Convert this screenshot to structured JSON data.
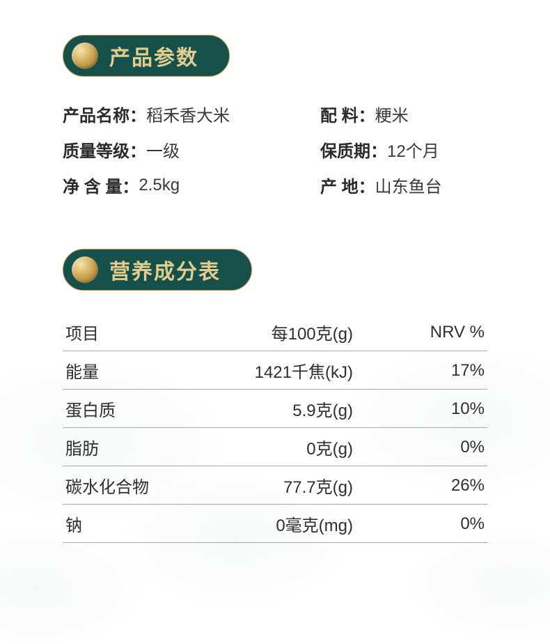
{
  "section1": {
    "title": "产品参数",
    "pill_bg": "#15504a",
    "pill_text_color": "#e4cc8f",
    "accent_gold_light": "#d9b867",
    "accent_gold_dark": "#b08a3a",
    "params_left": [
      {
        "label": "产品名称：",
        "value": "稻禾香大米"
      },
      {
        "label": "质量等级：",
        "value": "一级"
      },
      {
        "label": "净 含 量：",
        "value": "2.5kg"
      }
    ],
    "params_right": [
      {
        "label": "配        料：",
        "value": "粳米"
      },
      {
        "label": "保质期：",
        "value": "12个月"
      },
      {
        "label": "产        地：",
        "value": "山东鱼台"
      }
    ]
  },
  "section2": {
    "title": "营养成分表"
  },
  "nutrition": {
    "type": "table",
    "header": [
      "项目",
      "每100克(g)",
      "NRV %"
    ],
    "rows": [
      [
        "能量",
        "1421千焦(kJ)",
        "17%"
      ],
      [
        "蛋白质",
        "5.9克(g)",
        "10%"
      ],
      [
        "脂肪",
        "0克(g)",
        "0%"
      ],
      [
        "碳水化合物",
        "77.7克(g)",
        "26%"
      ],
      [
        "钠",
        "0毫克(mg)",
        "0%"
      ]
    ],
    "border_color": "#a8a8a8",
    "text_color": "#2f2f2f",
    "font_size": 24,
    "col_align": [
      "left",
      "right",
      "right"
    ],
    "col_width_pct": [
      26,
      44,
      30
    ]
  },
  "background": {
    "cloud_color": "rgba(230,242,238,0.35)"
  }
}
